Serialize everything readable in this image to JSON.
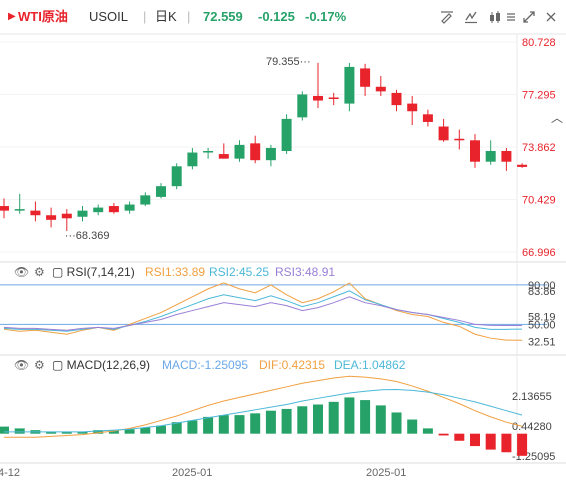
{
  "header": {
    "title": "WTI原油",
    "symbol": "USOIL",
    "period": "日K",
    "price": "72.559",
    "change": "-0.125",
    "change_pct": "-0.17%"
  },
  "colors": {
    "up": "#26a269",
    "down": "#e8232b",
    "accent": "#e8232b",
    "rsi1": "#f0a040",
    "rsi2": "#4cb8d8",
    "rsi3": "#9a7fd6",
    "macd": "#6aa7e8",
    "dif": "#f0a040",
    "dea": "#4cb8d8"
  },
  "icons": [
    "pencil-icon",
    "scale-icon",
    "brush-icon",
    "settings-icon",
    "expand-icon",
    "close-icon"
  ],
  "chart_data": [
    {
      "type": "candlestick",
      "y_ticks": [
        "80.728",
        "77.295",
        "73.862",
        "70.429",
        "66.996"
      ],
      "ylim": [
        66.996,
        80.728
      ],
      "annotations": [
        "79.355",
        "68.369"
      ],
      "candles": [
        {
          "o": 70.0,
          "h": 70.5,
          "l": 69.2,
          "c": 69.7
        },
        {
          "o": 69.7,
          "h": 70.8,
          "l": 69.5,
          "c": 69.8
        },
        {
          "o": 69.7,
          "h": 70.3,
          "l": 69.0,
          "c": 69.4
        },
        {
          "o": 69.4,
          "h": 69.9,
          "l": 68.6,
          "c": 69.1
        },
        {
          "o": 69.5,
          "h": 69.8,
          "l": 68.37,
          "c": 69.2
        },
        {
          "o": 69.3,
          "h": 70.0,
          "l": 69.0,
          "c": 69.7
        },
        {
          "o": 69.6,
          "h": 70.1,
          "l": 69.4,
          "c": 69.9
        },
        {
          "o": 70.0,
          "h": 70.2,
          "l": 69.5,
          "c": 69.6
        },
        {
          "o": 69.7,
          "h": 70.3,
          "l": 69.5,
          "c": 70.1
        },
        {
          "o": 70.1,
          "h": 70.9,
          "l": 70.0,
          "c": 70.7
        },
        {
          "o": 70.6,
          "h": 71.5,
          "l": 70.5,
          "c": 71.3
        },
        {
          "o": 71.3,
          "h": 72.8,
          "l": 71.1,
          "c": 72.6
        },
        {
          "o": 72.6,
          "h": 73.8,
          "l": 72.4,
          "c": 73.5
        },
        {
          "o": 73.5,
          "h": 73.8,
          "l": 73.1,
          "c": 73.6
        },
        {
          "o": 73.4,
          "h": 74.1,
          "l": 73.1,
          "c": 73.1
        },
        {
          "o": 73.1,
          "h": 74.3,
          "l": 72.9,
          "c": 74.0
        },
        {
          "o": 74.1,
          "h": 74.6,
          "l": 72.8,
          "c": 73.0
        },
        {
          "o": 73.0,
          "h": 74.0,
          "l": 72.6,
          "c": 73.8
        },
        {
          "o": 73.6,
          "h": 76.0,
          "l": 73.4,
          "c": 75.7
        },
        {
          "o": 75.8,
          "h": 77.5,
          "l": 75.6,
          "c": 77.3
        },
        {
          "o": 77.2,
          "h": 79.36,
          "l": 76.4,
          "c": 76.9
        },
        {
          "o": 77.1,
          "h": 77.4,
          "l": 76.6,
          "c": 77.0
        },
        {
          "o": 76.7,
          "h": 79.36,
          "l": 76.2,
          "c": 79.1
        },
        {
          "o": 79.0,
          "h": 79.3,
          "l": 77.2,
          "c": 77.8
        },
        {
          "o": 77.8,
          "h": 78.5,
          "l": 77.2,
          "c": 77.5
        },
        {
          "o": 77.4,
          "h": 77.6,
          "l": 76.2,
          "c": 76.6
        },
        {
          "o": 76.7,
          "h": 77.2,
          "l": 75.3,
          "c": 76.2
        },
        {
          "o": 76.0,
          "h": 76.3,
          "l": 75.2,
          "c": 75.5
        },
        {
          "o": 75.2,
          "h": 75.7,
          "l": 74.2,
          "c": 74.3
        },
        {
          "o": 74.4,
          "h": 75.0,
          "l": 73.7,
          "c": 74.3
        },
        {
          "o": 74.3,
          "h": 74.7,
          "l": 72.5,
          "c": 72.9
        },
        {
          "o": 72.9,
          "h": 74.3,
          "l": 72.7,
          "c": 73.6
        },
        {
          "o": 73.6,
          "h": 73.8,
          "l": 72.3,
          "c": 72.9
        },
        {
          "o": 72.7,
          "h": 72.8,
          "l": 72.5,
          "c": 72.56
        }
      ]
    },
    {
      "type": "line",
      "title": "RSI(7,14,21)",
      "legend": [
        "RSI1:33.89",
        "RSI2:45.25",
        "RSI3:48.91"
      ],
      "y_ticks": [
        "90.00",
        "83.86",
        "58.19",
        "50.00",
        "32.51"
      ],
      "ylim": [
        22,
        95
      ],
      "reference_lines": [
        90,
        50
      ],
      "series": [
        {
          "name": "RSI1",
          "values": [
            45,
            43,
            44,
            42,
            40,
            44,
            47,
            44,
            50,
            56,
            62,
            70,
            78,
            86,
            92,
            86,
            82,
            90,
            80,
            72,
            76,
            83,
            92,
            76,
            70,
            64,
            60,
            58,
            52,
            48,
            40,
            36,
            34,
            33.89
          ]
        },
        {
          "name": "RSI2",
          "values": [
            46,
            45,
            45,
            44,
            43,
            45,
            47,
            45,
            49,
            53,
            58,
            64,
            70,
            76,
            80,
            77,
            74,
            79,
            74,
            68,
            72,
            78,
            84,
            75,
            70,
            65,
            62,
            60,
            56,
            52,
            47,
            45,
            45,
            45.25
          ]
        },
        {
          "name": "RSI3",
          "values": [
            47,
            46,
            46,
            45,
            44,
            46,
            47,
            46,
            49,
            52,
            55,
            60,
            64,
            68,
            72,
            70,
            68,
            72,
            69,
            64,
            67,
            72,
            78,
            72,
            69,
            65,
            62,
            60,
            57,
            54,
            50,
            49,
            48.9,
            48.91
          ]
        }
      ]
    },
    {
      "type": "bar",
      "title": "MACD(12,26,9)",
      "legend": [
        "MACD:-1.25095",
        "DIF:0.42315",
        "DEA:1.04862"
      ],
      "y_ticks": [
        "2.13655",
        "0.44280",
        "-1.25095"
      ],
      "ylim": [
        -1.6,
        3.6
      ],
      "values": [
        0.4,
        0.3,
        0.2,
        0.1,
        0.1,
        0.1,
        0.2,
        0.2,
        0.25,
        0.35,
        0.45,
        0.65,
        0.75,
        0.95,
        1.05,
        1.05,
        1.15,
        1.3,
        1.4,
        1.55,
        1.65,
        1.8,
        2.05,
        1.9,
        1.6,
        1.2,
        0.8,
        0.3,
        -0.1,
        -0.4,
        -0.7,
        -0.9,
        -1.05,
        -1.25095
      ],
      "series": [
        {
          "name": "DIF",
          "values": [
            -0.2,
            -0.2,
            -0.2,
            -0.15,
            -0.1,
            -0.05,
            0.05,
            0.15,
            0.3,
            0.5,
            0.75,
            1.0,
            1.3,
            1.6,
            1.85,
            2.05,
            2.25,
            2.45,
            2.65,
            2.85,
            3.0,
            3.15,
            3.25,
            3.2,
            3.1,
            2.95,
            2.7,
            2.4,
            2.05,
            1.7,
            1.3,
            0.95,
            0.65,
            0.42315
          ]
        },
        {
          "name": "DEA",
          "values": [
            0.1,
            0.1,
            0.1,
            0.1,
            0.1,
            0.1,
            0.15,
            0.2,
            0.25,
            0.35,
            0.45,
            0.6,
            0.75,
            0.9,
            1.05,
            1.2,
            1.35,
            1.5,
            1.65,
            1.85,
            2.0,
            2.15,
            2.3,
            2.4,
            2.48,
            2.5,
            2.45,
            2.35,
            2.2,
            2.0,
            1.8,
            1.55,
            1.3,
            1.04862
          ]
        }
      ]
    }
  ],
  "x_axis": {
    "labels": [
      "4-12",
      "2025-01",
      "2025-01"
    ]
  }
}
